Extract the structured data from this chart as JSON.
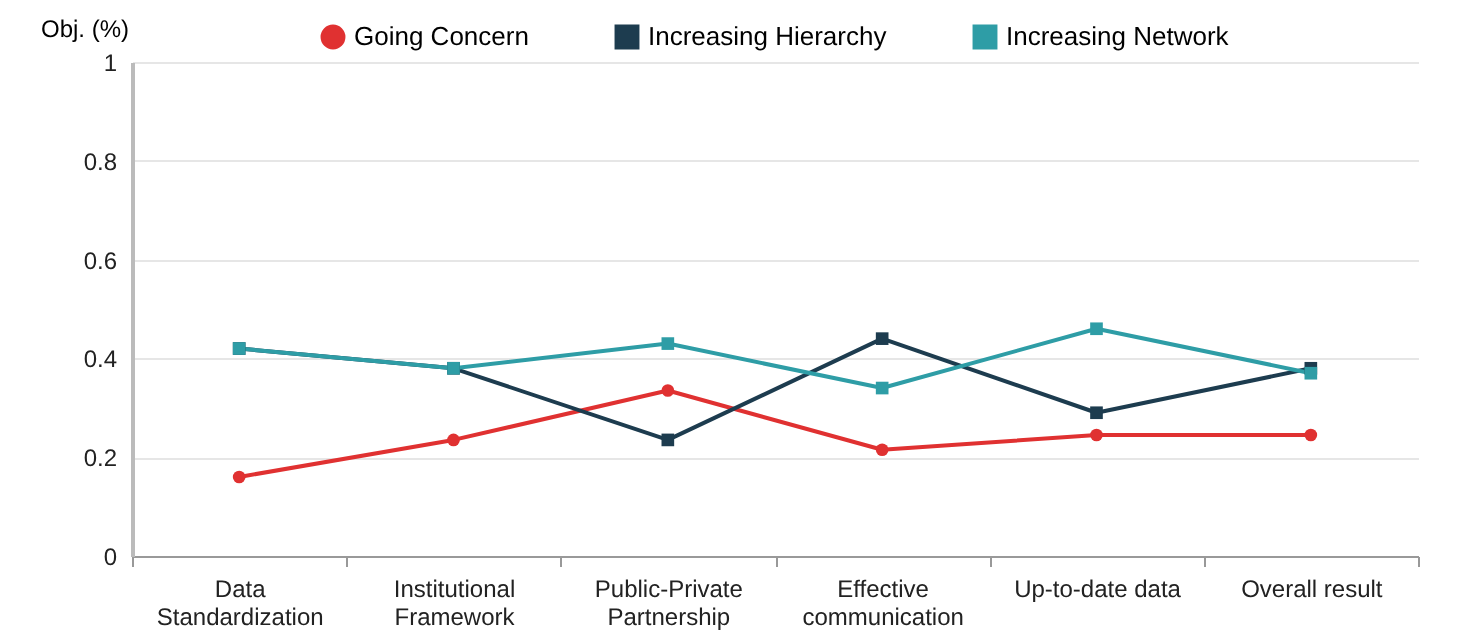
{
  "chart_data": {
    "type": "line",
    "ylabel": "Obj. (%)",
    "categories": [
      "Data Standardization",
      "Institutional Framework",
      "Public-Private Partnership",
      "Effective communication",
      "Up-to-date data",
      "Overall result"
    ],
    "series": [
      {
        "name": "Going Concern",
        "color": "#e03131",
        "marker": "circle",
        "values": [
          0.16,
          0.235,
          0.335,
          0.215,
          0.245,
          0.245
        ]
      },
      {
        "name": "Increasing Hierarchy",
        "color": "#1d3c4f",
        "marker": "square",
        "values": [
          0.42,
          0.38,
          0.235,
          0.44,
          0.29,
          0.38
        ]
      },
      {
        "name": "Increasing Network",
        "color": "#2e9da6",
        "marker": "square",
        "values": [
          0.42,
          0.38,
          0.43,
          0.34,
          0.46,
          0.37
        ]
      }
    ],
    "ylim": [
      0,
      1
    ],
    "yticks": [
      0,
      0.2,
      0.4,
      0.6,
      0.8,
      1
    ],
    "grid": "y",
    "legend": "top",
    "line_style": "solid"
  }
}
